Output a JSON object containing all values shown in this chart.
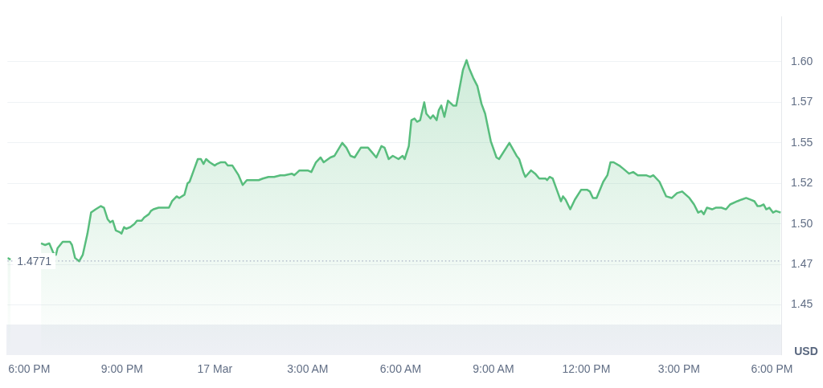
{
  "chart_data": {
    "type": "area",
    "ylabel": "USD",
    "x": [
      "--03-16T17:18",
      "--03-16T17:24",
      "--03-16T18:08",
      "--03-16T18:20",
      "--03-16T18:23",
      "--03-16T18:31",
      "--03-16T18:39",
      "--03-16T18:47",
      "--03-16T18:52",
      "--03-16T18:55",
      "--03-16T19:05",
      "--03-16T19:13",
      "--03-16T19:19",
      "--03-16T19:23",
      "--03-16T19:29",
      "--03-16T19:37",
      "--03-16T19:44",
      "--03-16T19:53",
      "--03-16T20:00",
      "--03-16T20:09",
      "--03-16T20:19",
      "--03-16T20:25",
      "--03-16T20:32",
      "--03-16T20:37",
      "--03-16T20:42",
      "--03-16T20:48",
      "--03-16T20:55",
      "--03-16T20:59",
      "--03-16T21:04",
      "--03-16T21:08",
      "--03-16T21:16",
      "--03-16T21:24",
      "--03-16T21:29",
      "--03-16T21:38",
      "--03-16T21:43",
      "--03-16T21:52",
      "--03-16T21:56",
      "--03-16T22:01",
      "--03-16T22:11",
      "--03-16T22:22",
      "--03-16T22:31",
      "--03-16T22:37",
      "--03-16T22:46",
      "--03-16T22:51",
      "--03-16T23:01",
      "--03-16T23:07",
      "--03-16T23:11",
      "--03-16T23:19",
      "--03-16T23:27",
      "--03-16T23:33",
      "--03-16T23:38",
      "--03-16T23:43",
      "--03-16T23:50",
      "--03-17T00:00",
      "--03-17T00:04",
      "--03-17T00:11",
      "--03-17T00:20",
      "--03-17T00:25",
      "--03-17T00:34",
      "--03-17T00:40",
      "--03-17T00:46",
      "--03-17T00:54",
      "--03-17T01:02",
      "--03-17T01:08",
      "--03-17T01:17",
      "--03-17T01:25",
      "--03-17T01:33",
      "--03-17T01:44",
      "--03-17T01:55",
      "--03-17T02:07",
      "--03-17T02:15",
      "--03-17T02:29",
      "--03-17T02:34",
      "--03-17T02:44",
      "--03-17T02:52",
      "--03-17T03:00",
      "--03-17T03:07",
      "--03-17T03:16",
      "--03-17T03:25",
      "--03-17T03:31",
      "--03-17T03:44",
      "--03-17T03:52",
      "--03-17T04:07",
      "--03-17T04:15",
      "--03-17T04:23",
      "--03-17T04:31",
      "--03-17T04:43",
      "--03-17T04:57",
      "--03-17T05:05",
      "--03-17T05:13",
      "--03-17T05:23",
      "--03-17T05:29",
      "--03-17T05:37",
      "--03-17T05:45",
      "--03-17T05:56",
      "--03-17T06:04",
      "--03-17T06:08",
      "--03-17T06:16",
      "--03-17T06:21",
      "--03-17T06:27",
      "--03-17T06:32",
      "--03-17T06:38",
      "--03-17T06:46",
      "--03-17T06:50",
      "--03-17T06:58",
      "--03-17T07:03",
      "--03-17T07:10",
      "--03-17T07:14",
      "--03-17T07:19",
      "--03-17T07:25",
      "--03-17T07:32",
      "--03-17T07:42",
      "--03-17T07:48",
      "--03-17T08:01",
      "--03-17T08:08",
      "--03-17T08:13",
      "--03-17T08:21",
      "--03-17T08:29",
      "--03-17T08:37",
      "--03-17T08:44",
      "--03-17T08:55",
      "--03-17T09:06",
      "--03-17T09:11",
      "--03-17T09:31",
      "--03-17T09:45",
      "--03-17T09:50",
      "--03-17T09:58",
      "--03-17T10:02",
      "--03-17T10:13",
      "--03-17T10:21",
      "--03-17T10:29",
      "--03-17T10:37",
      "--03-17T10:41",
      "--03-17T10:44",
      "--03-17T10:49",
      "--03-17T10:55",
      "--03-17T11:03",
      "--03-17T11:11",
      "--03-17T11:15",
      "--03-17T11:20",
      "--03-17T11:29",
      "--03-17T11:38",
      "--03-17T11:50",
      "--03-17T12:02",
      "--03-17T12:07",
      "--03-17T12:13",
      "--03-17T12:20",
      "--03-17T12:33",
      "--03-17T12:41",
      "--03-17T12:47",
      "--03-17T12:53",
      "--03-17T13:04",
      "--03-17T13:12",
      "--03-17T13:23",
      "--03-17T13:31",
      "--03-17T13:40",
      "--03-17T13:56",
      "--03-17T14:04",
      "--03-17T14:10",
      "--03-17T14:22",
      "--03-17T14:35",
      "--03-17T14:46",
      "--03-17T14:56",
      "--03-17T15:06",
      "--03-17T15:20",
      "--03-17T15:29",
      "--03-17T15:37",
      "--03-17T15:43",
      "--03-17T15:48",
      "--03-17T15:54",
      "--03-17T16:04",
      "--03-17T16:11",
      "--03-17T16:22",
      "--03-17T16:31",
      "--03-17T16:39",
      "--03-17T16:53",
      "--03-17T17:01",
      "--03-17T17:10",
      "--03-17T17:18",
      "--03-17T17:26",
      "--03-17T17:32",
      "--03-17T17:37",
      "--03-17T17:44",
      "--03-17T17:49",
      "--03-17T17:55",
      "--03-17T18:02",
      "--03-17T18:08",
      "--03-17T18:17"
    ],
    "series": [
      {
        "color": "#58bd7d",
        "values": [
          1.479,
          1.478,
          null,
          null,
          1.488,
          1.487,
          1.488,
          1.482,
          1.481,
          1.485,
          1.489,
          1.489,
          1.489,
          1.487,
          1.479,
          1.477,
          1.481,
          1.494,
          1.507,
          1.509,
          1.511,
          1.51,
          1.503,
          1.501,
          1.502,
          1.496,
          1.495,
          1.494,
          1.498,
          1.497,
          1.498,
          1.5,
          1.502,
          1.502,
          1.504,
          1.506,
          1.508,
          1.509,
          1.51,
          1.51,
          1.51,
          1.514,
          1.517,
          1.516,
          1.518,
          1.525,
          1.526,
          1.533,
          1.54,
          1.54,
          1.537,
          1.54,
          1.538,
          1.536,
          1.537,
          1.538,
          1.538,
          1.536,
          1.536,
          1.533,
          1.53,
          1.524,
          1.527,
          1.527,
          1.527,
          1.527,
          1.528,
          1.529,
          1.529,
          1.53,
          1.53,
          1.531,
          1.53,
          1.533,
          1.533,
          1.533,
          1.532,
          1.538,
          1.541,
          1.538,
          1.541,
          1.542,
          1.55,
          1.547,
          1.542,
          1.541,
          1.547,
          1.547,
          1.544,
          1.541,
          1.548,
          1.547,
          1.54,
          1.542,
          1.54,
          1.542,
          1.54,
          1.548,
          1.564,
          1.565,
          1.563,
          1.564,
          1.575,
          1.568,
          1.565,
          1.567,
          1.564,
          1.57,
          1.573,
          1.566,
          1.576,
          1.573,
          1.573,
          1.595,
          1.601,
          1.596,
          1.59,
          1.585,
          1.574,
          1.568,
          1.551,
          1.541,
          1.54,
          1.55,
          1.542,
          1.54,
          1.532,
          1.529,
          1.533,
          1.531,
          1.528,
          1.528,
          1.528,
          1.527,
          1.529,
          1.528,
          1.521,
          1.514,
          1.517,
          1.515,
          1.509,
          1.515,
          1.521,
          1.521,
          1.52,
          1.516,
          1.516,
          1.526,
          1.53,
          1.538,
          1.538,
          1.536,
          1.534,
          1.531,
          1.532,
          1.53,
          1.53,
          1.529,
          1.53,
          1.526,
          1.517,
          1.516,
          1.519,
          1.52,
          1.516,
          1.512,
          1.507,
          1.508,
          1.506,
          1.51,
          1.509,
          1.51,
          1.51,
          1.509,
          1.512,
          1.514,
          1.515,
          1.516,
          1.515,
          1.514,
          1.511,
          1.511,
          1.512,
          1.509,
          1.51,
          1.507,
          1.508,
          1.507
        ]
      }
    ],
    "xlim": [
      "--03-16T17:18",
      "--03-17T18:18"
    ],
    "xticks": [
      {
        "value": "--03-16T18:00",
        "label": "6:00 PM"
      },
      {
        "value": "--03-16T21:00",
        "label": "9:00 PM"
      },
      {
        "value": "--03-17",
        "label": "17 Mar"
      },
      {
        "value": "--03-17T03:00",
        "label": "3:00 AM"
      },
      {
        "value": "--03-17T06:00",
        "label": "6:00 AM"
      },
      {
        "value": "--03-17T09:00",
        "label": "9:00 AM"
      },
      {
        "value": "--03-17T12:00",
        "label": "12:00 PM"
      },
      {
        "value": "--03-17T15:00",
        "label": "3:00 PM"
      },
      {
        "value": "--03-17T18:00",
        "label": "6:00 PM"
      }
    ],
    "ylim": [
      1.419,
      1.628
    ],
    "yticks": [
      1.45,
      {
        "value": 1.475,
        "label": "1.47"
      },
      {
        "value": 1.5,
        "label": "1.50"
      },
      {
        "value": 1.525,
        "label": "1.52"
      },
      {
        "value": 1.55,
        "label": "1.55"
      },
      {
        "value": 1.575,
        "label": "1.57"
      },
      {
        "value": 1.6,
        "label": "1.60"
      }
    ],
    "grid": "y",
    "marker": "none",
    "line_style": "solid",
    "ref_lines": [
      {
        "axis": "y",
        "value": 1.4771,
        "label": "1.4771",
        "line_style": "dotted",
        "color": "#a6b0c3"
      }
    ]
  }
}
